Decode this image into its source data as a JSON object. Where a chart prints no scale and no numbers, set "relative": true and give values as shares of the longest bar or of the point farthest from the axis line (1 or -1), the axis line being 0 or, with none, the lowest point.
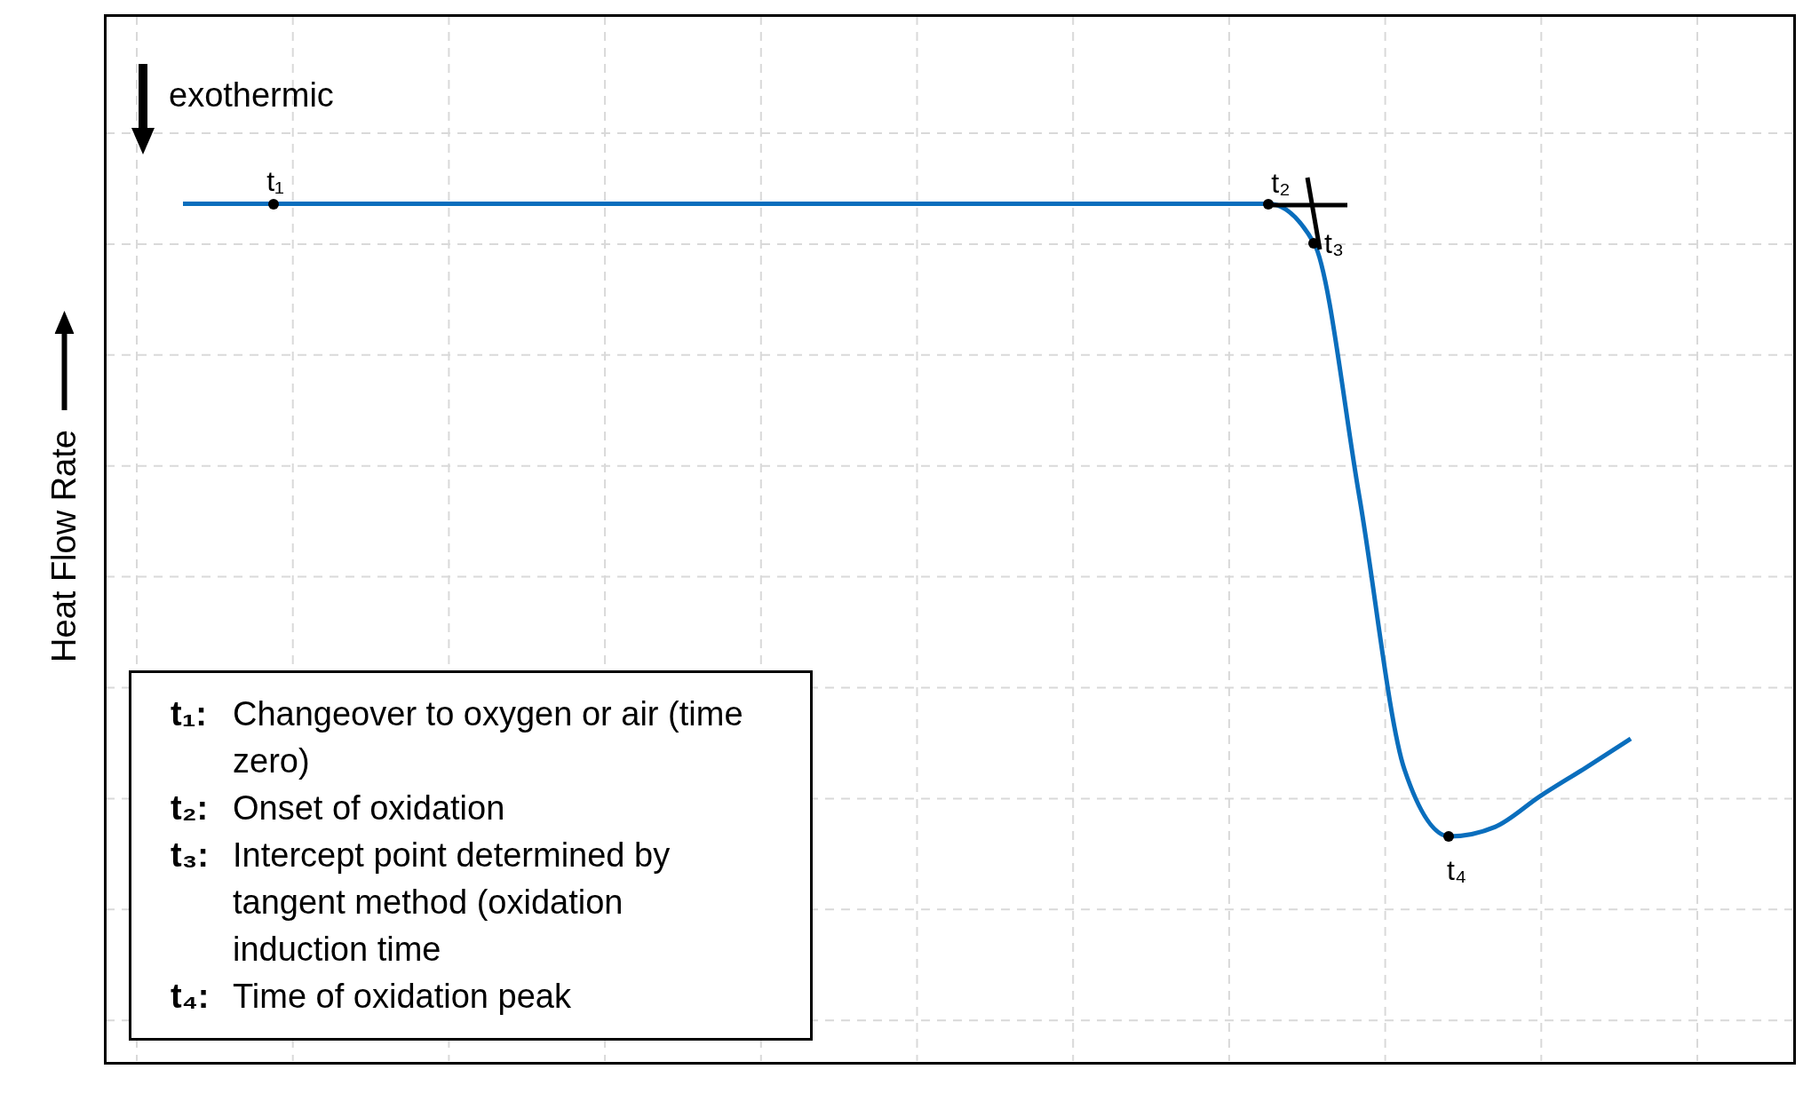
{
  "chart_data": {
    "type": "line",
    "relative": true,
    "ylabel": "Heat Flow Rate",
    "grid": true,
    "marker": "none",
    "line_style": "solid",
    "categories": [
      null,
      null,
      null,
      null,
      null,
      null,
      null,
      null,
      null,
      null,
      null,
      null,
      null,
      null,
      null,
      null,
      null,
      null,
      null,
      null,
      null,
      null,
      null,
      null,
      null,
      null,
      null,
      null,
      null,
      null,
      null,
      null,
      null
    ],
    "series": [
      {
        "color": "#0a6ebd",
        "values": [
          1,
          1,
          1,
          1,
          1,
          1,
          1,
          1,
          1,
          1,
          1,
          1,
          1,
          1,
          1,
          1,
          1,
          1,
          1,
          1,
          1,
          1,
          1,
          1,
          1,
          0.954,
          0.659,
          0.34,
          0.262,
          0.273,
          0.309,
          0.342,
          0.376
        ]
      }
    ],
    "annotations": [
      "exothermic",
      "t₁",
      "t₂",
      "t₃",
      "t₄",
      "t₁: Changeover to oxygen or air (time zero)",
      "t₂: Onset of oxidation",
      "t₃: Intercept point determined by tangent method (oxidation induction time",
      "t₄: Time of oxidation peak"
    ]
  }
}
